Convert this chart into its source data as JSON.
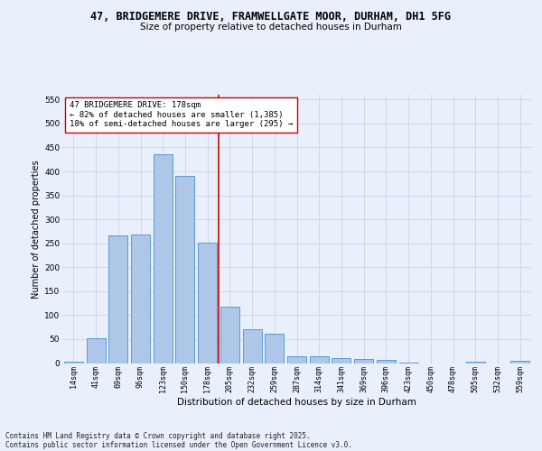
{
  "title_line1": "47, BRIDGEMERE DRIVE, FRAMWELLGATE MOOR, DURHAM, DH1 5FG",
  "title_line2": "Size of property relative to detached houses in Durham",
  "xlabel": "Distribution of detached houses by size in Durham",
  "ylabel": "Number of detached properties",
  "categories": [
    "14sqm",
    "41sqm",
    "69sqm",
    "96sqm",
    "123sqm",
    "150sqm",
    "178sqm",
    "205sqm",
    "232sqm",
    "259sqm",
    "287sqm",
    "314sqm",
    "341sqm",
    "369sqm",
    "396sqm",
    "423sqm",
    "450sqm",
    "478sqm",
    "505sqm",
    "532sqm",
    "559sqm"
  ],
  "values": [
    3,
    52,
    267,
    268,
    435,
    390,
    252,
    117,
    70,
    62,
    14,
    14,
    10,
    8,
    6,
    1,
    0,
    0,
    3,
    0,
    5
  ],
  "bar_color": "#aec6e8",
  "bar_edge_color": "#5b9bd5",
  "property_index": 6,
  "annotation_title": "47 BRIDGEMERE DRIVE: 178sqm",
  "annotation_line2": "← 82% of detached houses are smaller (1,385)",
  "annotation_line3": "18% of semi-detached houses are larger (295) →",
  "vline_color": "#cc0000",
  "annotation_box_color": "#ffffff",
  "annotation_box_edge": "#cc0000",
  "ylim": [
    0,
    560
  ],
  "yticks": [
    0,
    50,
    100,
    150,
    200,
    250,
    300,
    350,
    400,
    450,
    500,
    550
  ],
  "footer_line1": "Contains HM Land Registry data © Crown copyright and database right 2025.",
  "footer_line2": "Contains public sector information licensed under the Open Government Licence v3.0.",
  "bg_color": "#eaf0fb",
  "axes_bg_color": "#eaf0fb",
  "grid_color": "#c8d4e8",
  "title_fontsize": 8.5,
  "subtitle_fontsize": 7.5,
  "axis_label_fontsize": 7,
  "tick_fontsize": 6,
  "footer_fontsize": 5.5,
  "annotation_fontsize": 6.5
}
